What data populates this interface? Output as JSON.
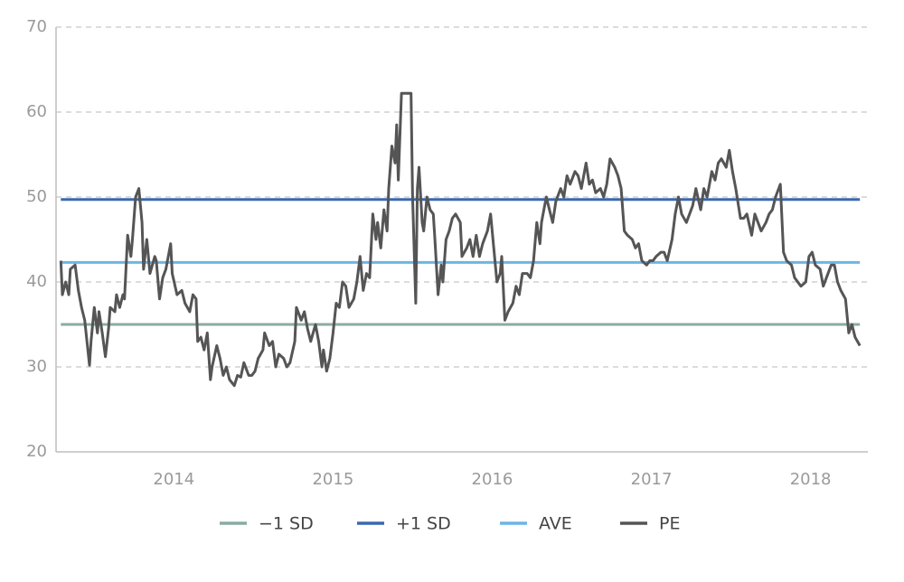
{
  "chart_data": {
    "type": "line",
    "xlim": [
      2013.26,
      2018.36
    ],
    "xticks": [
      2014,
      2015,
      2016,
      2017,
      2018
    ],
    "ylim": [
      20,
      70
    ],
    "yticks": [
      20,
      30,
      40,
      50,
      60,
      70
    ],
    "grid": true,
    "legend": "bottom",
    "series": [
      {
        "name": "−1 SD",
        "color": "#8aaba3",
        "x": [
          2013.29,
          2018.31
        ],
        "values": [
          35,
          35
        ]
      },
      {
        "name": "+1 SD",
        "color": "#3a68b0",
        "x": [
          2013.29,
          2018.31
        ],
        "values": [
          49.7,
          49.7
        ]
      },
      {
        "name": "AVE",
        "color": "#6db5e6",
        "x": [
          2013.29,
          2018.31
        ],
        "values": [
          42.3,
          42.3
        ]
      },
      {
        "name": "PE",
        "color": "#555555",
        "x": [
          2013.29,
          2013.3,
          2013.32,
          2013.34,
          2013.35,
          2013.38,
          2013.4,
          2013.42,
          2013.44,
          2013.46,
          2013.47,
          2013.48,
          2013.5,
          2013.52,
          2013.53,
          2013.55,
          2013.57,
          2013.59,
          2013.6,
          2013.63,
          2013.64,
          2013.66,
          2013.68,
          2013.69,
          2013.71,
          2013.73,
          2013.74,
          2013.76,
          2013.78,
          2013.8,
          2013.81,
          2013.83,
          2013.85,
          2013.88,
          2013.89,
          2013.91,
          2013.93,
          2013.95,
          2013.98,
          2013.99,
          2014.02,
          2014.05,
          2014.07,
          2014.1,
          2014.12,
          2014.14,
          2014.15,
          2014.17,
          2014.19,
          2014.21,
          2014.23,
          2014.24,
          2014.27,
          2014.29,
          2014.31,
          2014.33,
          2014.35,
          2014.38,
          2014.4,
          2014.42,
          2014.44,
          2014.47,
          2014.49,
          2014.51,
          2014.53,
          2014.56,
          2014.57,
          2014.6,
          2014.62,
          2014.64,
          2014.66,
          2014.69,
          2014.71,
          2014.73,
          2014.76,
          2014.77,
          2014.8,
          2014.82,
          2014.84,
          2014.86,
          2014.89,
          2014.91,
          2014.93,
          2014.94,
          2014.96,
          2014.98,
          2015.0,
          2015.02,
          2015.04,
          2015.06,
          2015.08,
          2015.1,
          2015.13,
          2015.15,
          2015.17,
          2015.19,
          2015.21,
          2015.23,
          2015.25,
          2015.27,
          2015.28,
          2015.3,
          2015.32,
          2015.34,
          2015.35,
          2015.37,
          2015.39,
          2015.4,
          2015.41,
          2015.43,
          2015.49,
          2015.5,
          2015.52,
          2015.53,
          2015.54,
          2015.56,
          2015.57,
          2015.59,
          2015.61,
          2015.63,
          2015.64,
          2015.66,
          2015.68,
          2015.69,
          2015.71,
          2015.73,
          2015.75,
          2015.77,
          2015.8,
          2015.81,
          2015.84,
          2015.86,
          2015.88,
          2015.9,
          2015.92,
          2015.94,
          2015.97,
          2015.99,
          2016.01,
          2016.03,
          2016.05,
          2016.06,
          2016.08,
          2016.1,
          2016.13,
          2016.15,
          2016.17,
          2016.19,
          2016.22,
          2016.24,
          2016.26,
          2016.28,
          2016.3,
          2016.31,
          2016.34,
          2016.36,
          2016.38,
          2016.4,
          2016.43,
          2016.45,
          2016.47,
          2016.49,
          2016.52,
          2016.54,
          2016.56,
          2016.59,
          2016.61,
          2016.63,
          2016.65,
          2016.68,
          2016.7,
          2016.72,
          2016.74,
          2016.77,
          2016.79,
          2016.81,
          2016.83,
          2016.85,
          2016.88,
          2016.9,
          2016.92,
          2016.94,
          2016.97,
          2016.99,
          2017.01,
          2017.03,
          2017.06,
          2017.08,
          2017.1,
          2017.13,
          2017.15,
          2017.17,
          2017.19,
          2017.22,
          2017.24,
          2017.26,
          2017.28,
          2017.31,
          2017.33,
          2017.35,
          2017.38,
          2017.4,
          2017.42,
          2017.44,
          2017.47,
          2017.49,
          2017.51,
          2017.53,
          2017.56,
          2017.58,
          2017.6,
          2017.63,
          2017.65,
          2017.67,
          2017.69,
          2017.72,
          2017.74,
          2017.76,
          2017.78,
          2017.81,
          2017.83,
          2017.85,
          2017.88,
          2017.9,
          2017.92,
          2017.94,
          2017.97,
          2017.99,
          2018.01,
          2018.03,
          2018.06,
          2018.08,
          2018.1,
          2018.13,
          2018.15,
          2018.17,
          2018.19,
          2018.22,
          2018.24,
          2018.26,
          2018.28,
          2018.31
        ],
        "values": [
          42.5,
          38.5,
          40,
          38.5,
          41.5,
          42,
          39,
          37,
          35.5,
          32,
          30.2,
          33,
          37,
          34,
          36.5,
          34,
          31.2,
          34.5,
          37,
          36.5,
          38.5,
          37,
          38.5,
          38,
          45.5,
          43,
          45,
          50,
          51,
          47,
          41.5,
          45,
          41,
          43,
          42.5,
          38,
          40.5,
          41.5,
          44.5,
          41,
          38.5,
          39,
          37.5,
          36.5,
          38.5,
          38,
          33,
          33.5,
          32,
          34,
          28.5,
          30,
          32.5,
          31,
          29,
          30,
          28.5,
          27.8,
          29,
          28.8,
          30.5,
          29,
          29,
          29.5,
          31,
          32,
          34,
          32.5,
          33,
          30,
          31.5,
          31,
          30,
          30.5,
          33,
          37,
          35.5,
          36.5,
          34.5,
          33,
          35,
          33,
          30,
          32,
          29.5,
          31,
          34,
          37.5,
          37,
          40,
          39.5,
          37,
          38,
          40,
          43,
          39,
          41,
          40.5,
          48,
          45,
          47,
          44,
          48.5,
          46,
          51,
          56,
          54,
          58.5,
          52,
          62.2,
          62.2,
          50,
          37.5,
          51,
          53.5,
          47,
          46,
          50,
          48.5,
          48,
          45,
          38.5,
          42,
          40,
          45,
          46,
          47.5,
          48,
          47,
          43,
          44,
          45,
          43,
          45.5,
          43,
          44.5,
          46,
          48,
          44,
          40,
          41,
          43,
          35.5,
          36.5,
          37.5,
          39.5,
          38.5,
          41,
          41,
          40.5,
          42.5,
          47,
          44.5,
          47,
          50,
          48.5,
          47,
          49.5,
          51,
          50,
          52.5,
          51.5,
          53,
          52.5,
          51,
          54,
          51.5,
          52,
          50.5,
          51,
          50,
          51.5,
          54.5,
          53.5,
          52.5,
          51,
          46,
          45.5,
          45,
          44,
          44.5,
          42.5,
          42,
          42.5,
          42.5,
          43,
          43.5,
          43.5,
          42.5,
          45,
          48,
          50,
          48,
          47,
          48,
          49,
          51,
          48.5,
          51,
          50,
          53,
          52,
          54,
          54.5,
          53.5,
          55.5,
          53,
          51,
          47.5,
          47.5,
          48,
          45.5,
          48,
          47,
          46,
          47,
          48,
          48.5,
          50,
          51.5,
          43.5,
          42.5,
          42,
          40.5,
          40,
          39.5,
          40,
          43,
          43.5,
          42,
          41.5,
          39.5,
          40.5,
          42,
          42,
          40,
          39,
          38,
          34,
          35,
          33.5,
          32.5
        ]
      }
    ]
  }
}
